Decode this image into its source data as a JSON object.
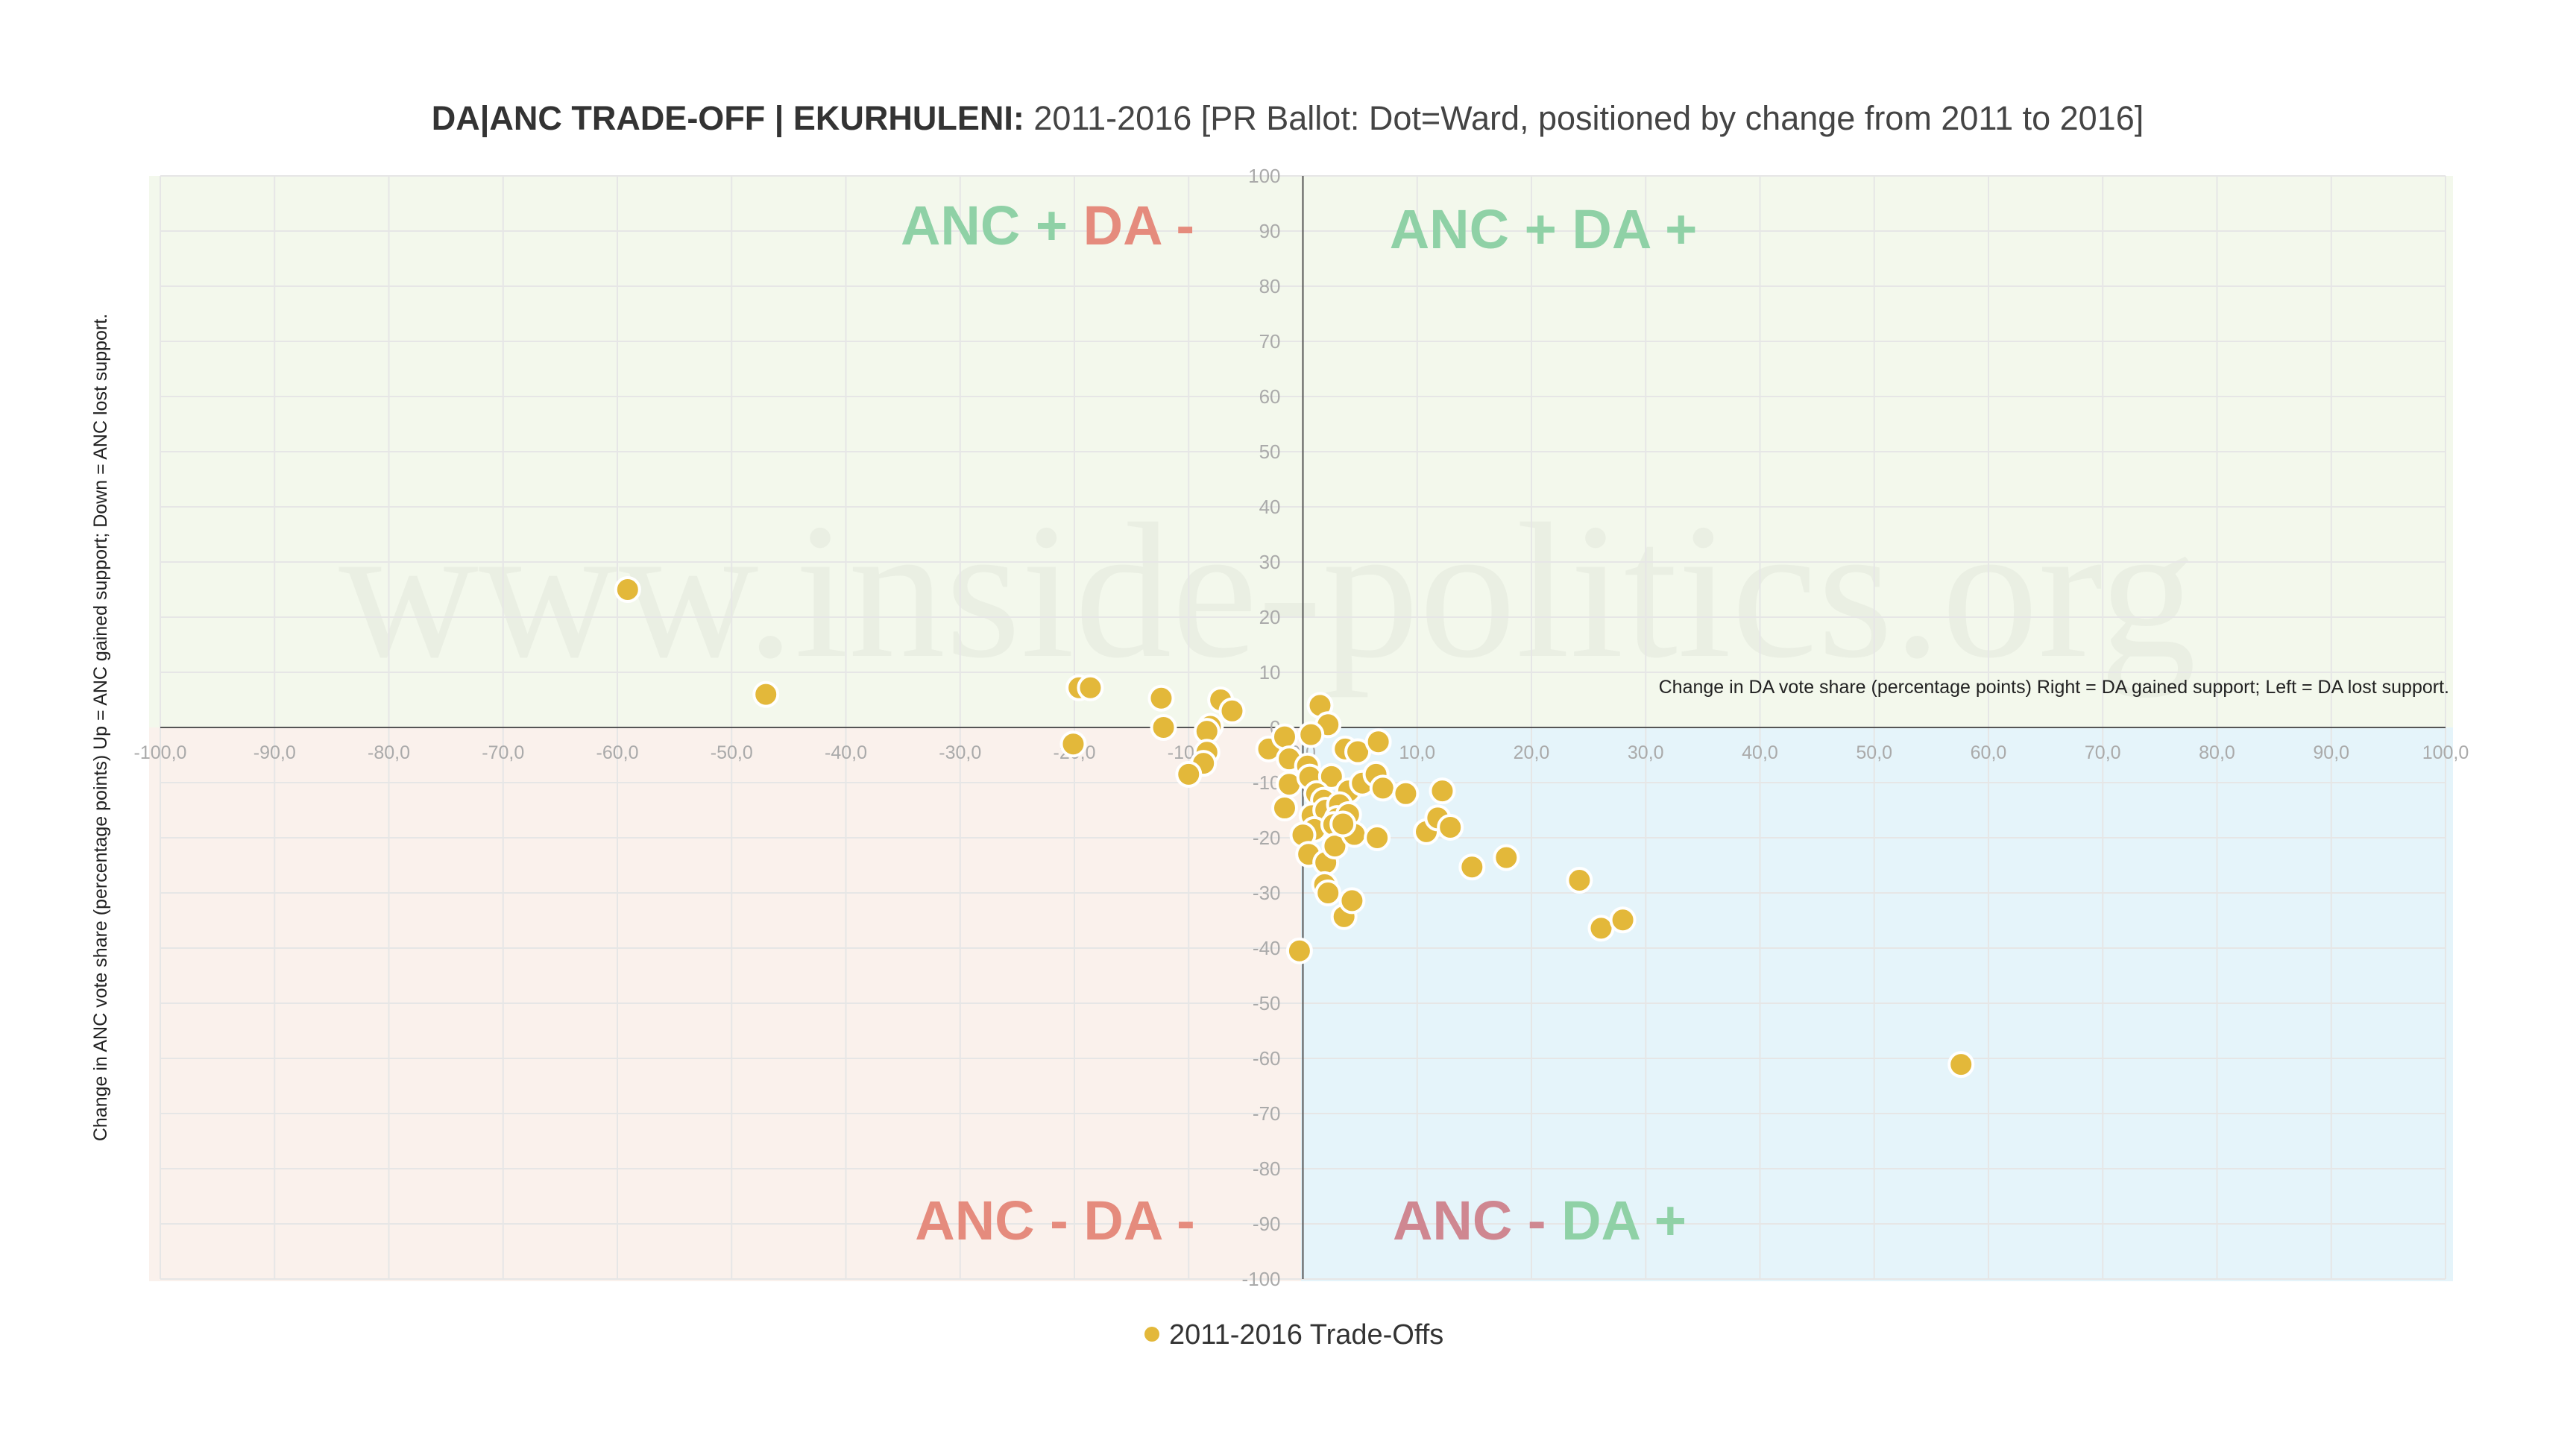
{
  "chart_data": {
    "type": "scatter",
    "title_bold": "DA|ANC TRADE-OFF | EKURHULENI:",
    "title_rest": "2011-2016 [PR Ballot: Dot=Ward, positioned by change from 2011 to 2016]",
    "xlabel": "Change in DA vote share (percentage points) Right = DA gained support; Left = DA lost support.",
    "ylabel": "Change in ANC vote share (percentage points) Up = ANC gained support; Down = ANC lost support.",
    "xlim": [
      -100,
      100
    ],
    "ylim": [
      -100,
      100
    ],
    "x_ticks": [
      "-100,0",
      "-90,0",
      "-80,0",
      "-70,0",
      "-60,0",
      "-50,0",
      "-40,0",
      "-30,0",
      "-20,0",
      "-10,0",
      "0,0",
      "10,0",
      "20,0",
      "30,0",
      "40,0",
      "50,0",
      "60,0",
      "70,0",
      "80,0",
      "90,0",
      "100,0"
    ],
    "y_ticks": [
      "100",
      "90",
      "80",
      "70",
      "60",
      "50",
      "40",
      "30",
      "20",
      "10",
      "0",
      "-10",
      "-20",
      "-30",
      "-40",
      "-50",
      "-60",
      "-70",
      "-80",
      "-90",
      "-100"
    ],
    "watermark": "www.inside-politics.org",
    "quadrant_labels": {
      "top_left": {
        "anc": "ANC +",
        "da": "DA -"
      },
      "top_right": {
        "anc": "ANC +",
        "da": "DA +"
      },
      "bottom_left": {
        "anc": "ANC -",
        "da": "DA -"
      },
      "bottom_right": {
        "anc": "ANC -",
        "da": "DA +"
      }
    },
    "colors": {
      "positive": "#8fd1a6",
      "negative": "#e58b7d",
      "anc_minus_bottom_right": "#cf8791",
      "point": "#e3b83a",
      "quad_top": "#f3f8ec",
      "quad_bottom_left": "#faf1ec",
      "quad_bottom_right": "#e5f4fa"
    },
    "series": [
      {
        "name": "2011-2016 Trade-Offs",
        "points": [
          [
            -59.1,
            25.0
          ],
          [
            -47.0,
            6.0
          ],
          [
            -19.6,
            7.2
          ],
          [
            -18.6,
            7.2
          ],
          [
            -20.1,
            -3.0
          ],
          [
            -12.4,
            5.3
          ],
          [
            -12.2,
            0.0
          ],
          [
            -7.2,
            5.0
          ],
          [
            -6.2,
            3.0
          ],
          [
            -8.1,
            0.2
          ],
          [
            -8.4,
            -0.7
          ],
          [
            -8.4,
            -4.5
          ],
          [
            -8.7,
            -6.5
          ],
          [
            -10.0,
            -8.5
          ],
          [
            -3.0,
            -3.9
          ],
          [
            -1.6,
            -1.7
          ],
          [
            -1.2,
            -5.7
          ],
          [
            -1.6,
            -14.6
          ],
          [
            -1.2,
            -10.3
          ],
          [
            -0.3,
            -40.5
          ],
          [
            1.5,
            4.0
          ],
          [
            2.2,
            0.5
          ],
          [
            0.7,
            -1.3
          ],
          [
            3.7,
            -3.9
          ],
          [
            4.8,
            -4.4
          ],
          [
            6.6,
            -2.6
          ],
          [
            0.4,
            -7.0
          ],
          [
            0.6,
            -9.0
          ],
          [
            2.5,
            -8.9
          ],
          [
            1.2,
            -12.0
          ],
          [
            1.8,
            -13.2
          ],
          [
            4.0,
            -11.5
          ],
          [
            5.2,
            -10.1
          ],
          [
            6.4,
            -8.5
          ],
          [
            7.0,
            -11.0
          ],
          [
            9.0,
            -12.0
          ],
          [
            12.2,
            -11.5
          ],
          [
            0.8,
            -16.0
          ],
          [
            2.0,
            -15.0
          ],
          [
            3.2,
            -14.0
          ],
          [
            1.0,
            -18.5
          ],
          [
            3.0,
            -16.5
          ],
          [
            4.0,
            -15.8
          ],
          [
            2.7,
            -17.6
          ],
          [
            0.0,
            -19.5
          ],
          [
            0.5,
            -23.0
          ],
          [
            2.0,
            -24.5
          ],
          [
            2.8,
            -21.5
          ],
          [
            4.5,
            -19.4
          ],
          [
            3.5,
            -17.5
          ],
          [
            6.5,
            -20.0
          ],
          [
            10.8,
            -18.9
          ],
          [
            11.8,
            -16.4
          ],
          [
            12.9,
            -18.1
          ],
          [
            1.9,
            -28.5
          ],
          [
            2.2,
            -30.0
          ],
          [
            3.6,
            -34.3
          ],
          [
            4.3,
            -31.4
          ],
          [
            14.8,
            -25.3
          ],
          [
            17.8,
            -23.6
          ],
          [
            24.2,
            -27.7
          ],
          [
            26.1,
            -36.4
          ],
          [
            28.0,
            -34.9
          ],
          [
            57.6,
            -61.1
          ]
        ]
      }
    ]
  }
}
